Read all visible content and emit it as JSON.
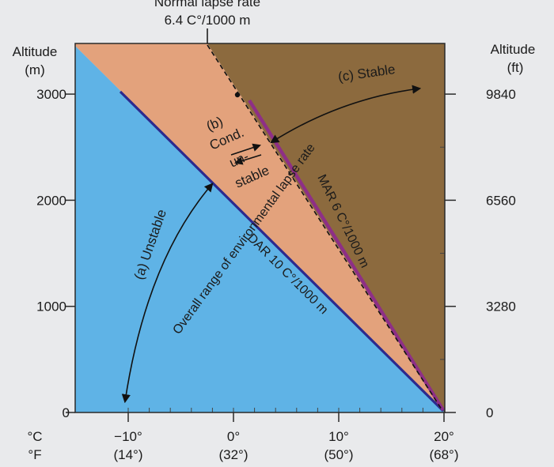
{
  "top_label": {
    "title_partial": "Normal lapse rate",
    "value": "6.4 C°/1000 m"
  },
  "left_axis": {
    "title_line1": "Altitude",
    "title_line2": "(m)",
    "ticks": [
      {
        "value": 3000,
        "label": "3000"
      },
      {
        "value": 2000,
        "label": "2000"
      },
      {
        "value": 1000,
        "label": "1000"
      },
      {
        "value": 0,
        "label": "0"
      }
    ]
  },
  "right_axis": {
    "title_line1": "Altitude",
    "title_line2": "(ft)",
    "ticks": [
      {
        "value": 3000,
        "label": "9840"
      },
      {
        "value": 2000,
        "label": "6560"
      },
      {
        "value": 1000,
        "label": "3280"
      },
      {
        "value": 0,
        "label": "0"
      }
    ]
  },
  "bottom_axis": {
    "unit_c": "°C",
    "unit_f": "°F",
    "ticks": [
      {
        "value": -10,
        "c": "−10°",
        "f": "(14°)"
      },
      {
        "value": 0,
        "c": "0°",
        "f": "(32°)"
      },
      {
        "value": 10,
        "c": "10°",
        "f": "(50°)"
      },
      {
        "value": 20,
        "c": "20°",
        "f": "(68°)"
      }
    ]
  },
  "regions": {
    "unstable": "(a) Unstable",
    "cond_line1": "(b)",
    "cond_line2": "Cond.",
    "cond_line3": "un-",
    "cond_line4": "stable",
    "stable": "(c) Stable"
  },
  "lines": {
    "dar": "DAR 10 C°/1000 m",
    "mar": "MAR 6 C°/1000 m",
    "overall": "Overall range of environmental lapse rate"
  },
  "colors": {
    "unstable_fill": "#5fb3e6",
    "cond_fill": "#e3a27c",
    "stable_fill": "#8c6a3e",
    "dar_line": "#2c2a8e",
    "mar_line": "#8e2f86"
  }
}
